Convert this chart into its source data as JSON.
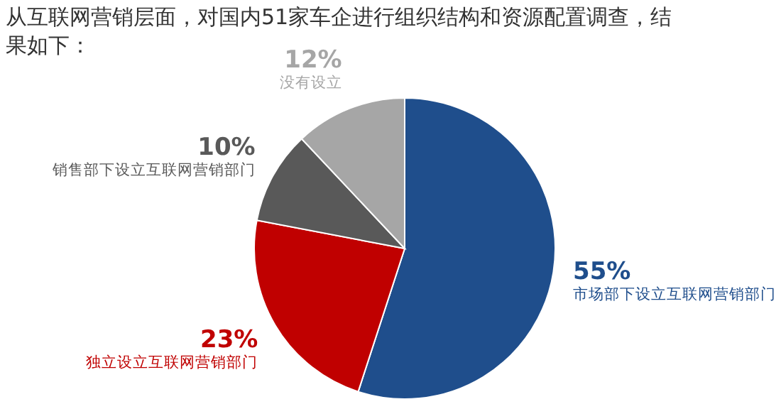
{
  "chart_data": {
    "type": "pie",
    "title": "从互联网营销层面，对国内51家车企进行组织结构和资源配置调查，结果如下：",
    "categories": [
      "市场部下设立互联网营销部门",
      "独立设立互联网营销部门",
      "销售部下设立互联网营销部门",
      "没有设立"
    ],
    "values": [
      55,
      23,
      10,
      12
    ],
    "colors": [
      "#1f4e8c",
      "#c00000",
      "#595959",
      "#a6a6a6"
    ],
    "value_labels": [
      "55%",
      "23%",
      "10%",
      "12%"
    ]
  }
}
